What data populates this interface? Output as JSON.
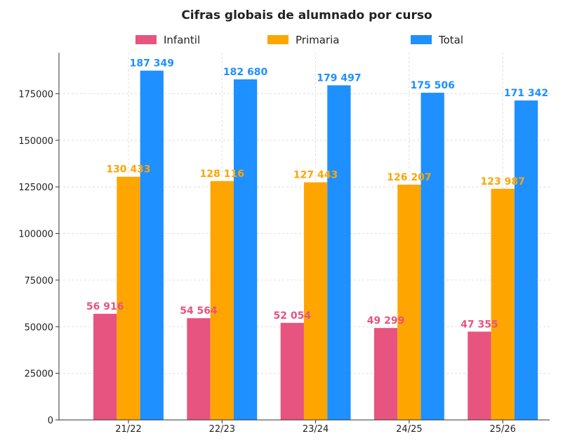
{
  "chart_data": {
    "type": "bar",
    "title": "Cifras globais de alumnado por curso",
    "xlabel": "",
    "ylabel": "",
    "categories": [
      "21/22",
      "22/23",
      "23/24",
      "24/25",
      "25/26"
    ],
    "series": [
      {
        "name": "Infantil",
        "color": "#e75480",
        "values": [
          56916,
          54564,
          52054,
          49299,
          47355
        ],
        "labels": [
          "56 916",
          "54 564",
          "52 054",
          "49 299",
          "47 355"
        ]
      },
      {
        "name": "Primaria",
        "color": "#ffa500",
        "values": [
          130433,
          128116,
          127443,
          126207,
          123987
        ],
        "labels": [
          "130 433",
          "128 116",
          "127 443",
          "126 207",
          "123 987"
        ]
      },
      {
        "name": "Total",
        "color": "#1e90ff",
        "values": [
          187349,
          182680,
          179497,
          175506,
          171342
        ],
        "labels": [
          "187 349",
          "182 680",
          "179 497",
          "175 506",
          "171 342"
        ]
      }
    ],
    "yticks": [
      0,
      25000,
      50000,
      75000,
      100000,
      125000,
      150000,
      175000
    ],
    "ylim": [
      0,
      197000
    ],
    "grid": true,
    "legend": "top"
  }
}
